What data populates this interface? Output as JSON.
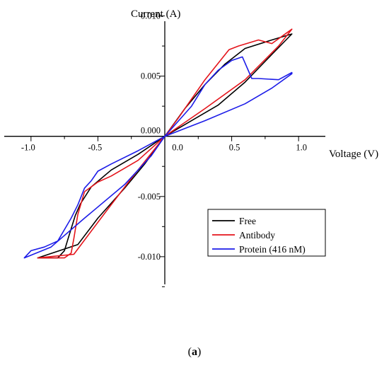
{
  "chart_data": {
    "type": "line",
    "title": "",
    "xlabel": "Voltage (V)",
    "ylabel": "Current (A)",
    "xlim": [
      -1.2,
      1.2
    ],
    "ylim": [
      -0.0123,
      0.0105
    ],
    "x_ticks": [
      {
        "value": -1.0,
        "label": "-1.0"
      },
      {
        "value": -0.5,
        "label": "-0.5"
      },
      {
        "value": 0.0,
        "label": "0.0"
      },
      {
        "value": 0.5,
        "label": "0.5"
      },
      {
        "value": 1.0,
        "label": "1.0"
      }
    ],
    "y_ticks": [
      {
        "value": 0.01,
        "label": "0.010"
      },
      {
        "value": 0.005,
        "label": "0.005"
      },
      {
        "value": 0.0,
        "label": "0.000"
      },
      {
        "value": -0.005,
        "label": "-0.005"
      },
      {
        "value": -0.01,
        "label": "-0.010"
      }
    ],
    "grid": false,
    "legend_position": "bottom-right",
    "series": [
      {
        "name": "Free",
        "color": "#000000",
        "x": [
          -0.67,
          -0.72,
          -0.75,
          -0.8,
          -0.85,
          -0.95,
          -0.65,
          -0.5,
          -0.3,
          -0.15,
          0.0,
          0.2,
          0.4,
          0.6,
          0.8,
          0.95,
          0.95,
          0.8,
          0.6,
          0.45,
          0.3,
          0.15,
          0.0,
          -0.2,
          -0.4,
          -0.55,
          -0.63,
          -0.67
        ],
        "y": [
          -0.0066,
          -0.0084,
          -0.0095,
          -0.0101,
          -0.0101,
          -0.0101,
          -0.009,
          -0.0068,
          -0.0043,
          -0.0023,
          0.0,
          0.0013,
          0.0026,
          0.0045,
          0.0068,
          0.0085,
          0.0085,
          0.008,
          0.0073,
          0.006,
          0.0043,
          0.0023,
          0.0,
          -0.0015,
          -0.0028,
          -0.0042,
          -0.0056,
          -0.0066
        ]
      },
      {
        "name": "Antibody",
        "color": "#e4141b",
        "x": [
          -0.6,
          -0.65,
          -0.68,
          -0.7,
          -0.75,
          -0.85,
          -0.95,
          -0.68,
          -0.45,
          -0.25,
          -0.05,
          0.0,
          0.3,
          0.6,
          0.85,
          0.95,
          0.8,
          0.7,
          0.55,
          0.48,
          0.3,
          0.1,
          0.0,
          -0.2,
          -0.4,
          -0.5,
          -0.6
        ],
        "y": [
          -0.0046,
          -0.0065,
          -0.0085,
          -0.0097,
          -0.0101,
          -0.0101,
          -0.0101,
          -0.0098,
          -0.0064,
          -0.0035,
          -0.0007,
          0.0,
          0.0023,
          0.0047,
          0.0075,
          0.0089,
          0.0077,
          0.008,
          0.0075,
          0.0072,
          0.0047,
          0.0015,
          0.0,
          -0.002,
          -0.0033,
          -0.0038,
          -0.0046
        ]
      },
      {
        "name": "Protein (416 nM)",
        "color": "#1c1ce8",
        "x": [
          -0.55,
          -0.6,
          -0.65,
          -0.7,
          -0.8,
          -0.9,
          -1.0,
          -1.05,
          -0.85,
          -0.6,
          -0.3,
          -0.1,
          0.0,
          0.3,
          0.6,
          0.8,
          0.95,
          0.95,
          0.85,
          0.7,
          0.65,
          0.58,
          0.5,
          0.4,
          0.3,
          0.2,
          0.0,
          -0.2,
          -0.4,
          -0.5,
          -0.55
        ],
        "y": [
          -0.0037,
          -0.0043,
          -0.0057,
          -0.0068,
          -0.0087,
          -0.0092,
          -0.0095,
          -0.0101,
          -0.0092,
          -0.0068,
          -0.004,
          -0.0016,
          0.0,
          0.0013,
          0.0027,
          0.004,
          0.0052,
          0.0053,
          0.0047,
          0.0048,
          0.0048,
          0.0066,
          0.0063,
          0.0055,
          0.0043,
          0.0025,
          0.0,
          -0.0012,
          -0.0023,
          -0.0029,
          -0.0037
        ]
      }
    ]
  },
  "caption": {
    "open": "(",
    "letter": "a",
    "close": ")"
  }
}
